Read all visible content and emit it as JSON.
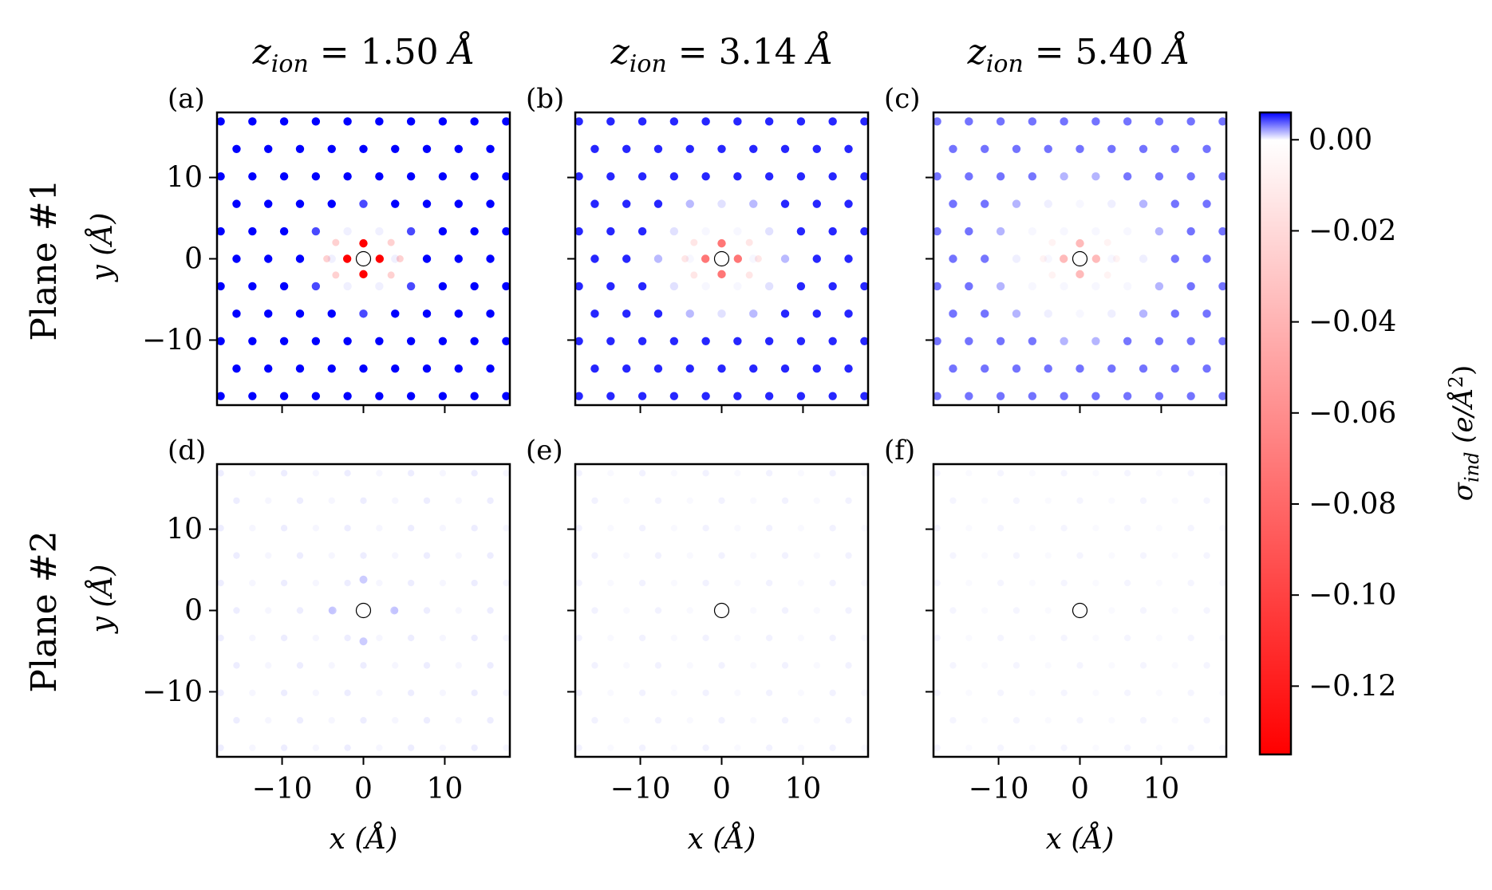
{
  "chart_data": {
    "type": "heatmap",
    "description_units": "induced surface charge density",
    "column_titles": [
      {
        "symbol": "z",
        "subscript": "ion",
        "value": "1.50",
        "unit": "Å"
      },
      {
        "symbol": "z",
        "subscript": "ion",
        "value": "3.14",
        "unit": "Å"
      },
      {
        "symbol": "z",
        "subscript": "ion",
        "value": "5.40",
        "unit": "Å"
      }
    ],
    "row_titles": [
      "Plane #1",
      "Plane #2"
    ],
    "panels": [
      {
        "label": "(a)",
        "row": 0,
        "col": 0,
        "background_blue": 1.0,
        "ring_inner_radius": 3.5,
        "ring_outer_radius": 7.5,
        "center_red": 0.13,
        "center_ring": 1.9
      },
      {
        "label": "(b)",
        "row": 0,
        "col": 1,
        "background_blue": 0.85,
        "ring_inner_radius": 5.5,
        "ring_outer_radius": 10.0,
        "center_red": 0.07,
        "center_ring": 1.9
      },
      {
        "label": "(c)",
        "row": 0,
        "col": 2,
        "background_blue": 0.55,
        "ring_inner_radius": 7.0,
        "ring_outer_radius": 12.0,
        "center_red": 0.035,
        "center_ring": 1.9
      },
      {
        "label": "(d)",
        "row": 1,
        "col": 0,
        "background_blue": 0.07,
        "ring_inner_radius": 0,
        "ring_outer_radius": 0,
        "center_red": 0.0,
        "center_ring": 3.8
      },
      {
        "label": "(e)",
        "row": 1,
        "col": 1,
        "background_blue": 0.05,
        "ring_inner_radius": 0,
        "ring_outer_radius": 0,
        "center_red": 0.0,
        "center_ring": 0
      },
      {
        "label": "(f)",
        "row": 1,
        "col": 2,
        "background_blue": 0.04,
        "ring_inner_radius": 0,
        "ring_outer_radius": 0,
        "center_red": 0.0,
        "center_ring": 0
      }
    ],
    "xlim": [
      -18,
      18
    ],
    "ylim": [
      -18,
      18
    ],
    "xticks": [
      -10,
      0,
      10
    ],
    "yticks": [
      -10,
      0,
      10
    ],
    "tick_labels": [
      "−10",
      "0",
      "10"
    ],
    "xlabel": {
      "var": "x",
      "unit": "Å"
    },
    "ylabel": {
      "var": "y",
      "unit": "Å"
    },
    "lattice_spacing": 3.9,
    "ion_position": [
      0,
      0
    ],
    "colorbar": {
      "vmin": -0.135,
      "vmax": 0.006,
      "ticks": [
        0.0,
        -0.02,
        -0.04,
        -0.06,
        -0.08,
        -0.1,
        -0.12
      ],
      "tick_labels": [
        "0.00",
        "−0.02",
        "−0.04",
        "−0.06",
        "−0.08",
        "−0.10",
        "−0.12"
      ],
      "label_symbol": "σ",
      "label_subscript": "ind",
      "label_unit": "(e/Å",
      "label_exp": "2",
      "label_close": ")",
      "colormap": [
        "#ff0000",
        "#ffffff",
        "#0000ff"
      ]
    }
  }
}
